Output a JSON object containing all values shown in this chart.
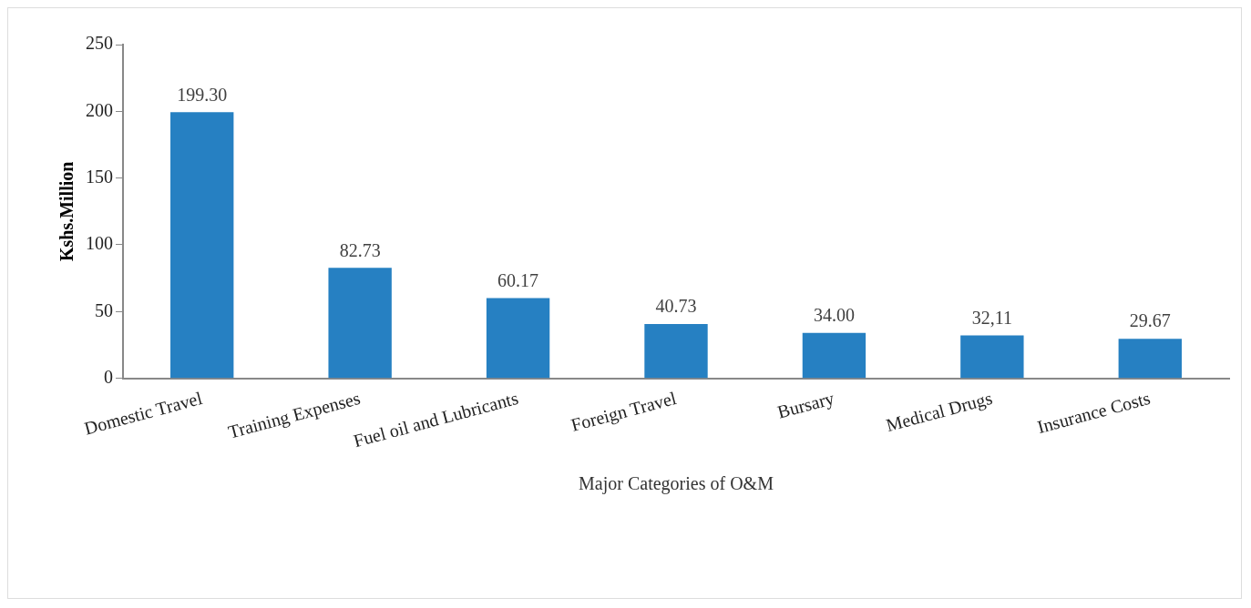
{
  "chart_data": {
    "type": "bar",
    "xlabel": "Major Categories of O&M",
    "ylabel": "Kshs.Million",
    "categories": [
      "Domestic Travel",
      "Training Expenses",
      "Fuel oil and Lubricants",
      "Foreign Travel",
      "Bursary",
      "Medical Drugs",
      "Insurance Costs"
    ],
    "values": [
      199.3,
      82.73,
      60.17,
      40.73,
      34.0,
      32.11,
      29.67
    ],
    "value_labels": [
      "199.30",
      "82.73",
      "60.17",
      "40.73",
      "34.00",
      "32,11",
      "29.67"
    ],
    "color": "#2680c2",
    "ylim": [
      0,
      250
    ],
    "yticks": [
      0,
      50,
      100,
      150,
      200,
      250
    ],
    "grid": false,
    "legend": false
  }
}
